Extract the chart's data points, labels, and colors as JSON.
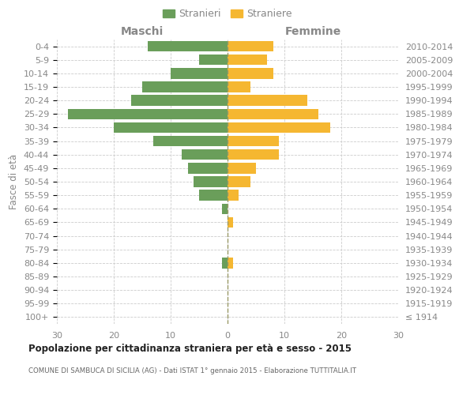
{
  "age_groups": [
    "100+",
    "95-99",
    "90-94",
    "85-89",
    "80-84",
    "75-79",
    "70-74",
    "65-69",
    "60-64",
    "55-59",
    "50-54",
    "45-49",
    "40-44",
    "35-39",
    "30-34",
    "25-29",
    "20-24",
    "15-19",
    "10-14",
    "5-9",
    "0-4"
  ],
  "birth_years": [
    "≤ 1914",
    "1915-1919",
    "1920-1924",
    "1925-1929",
    "1930-1934",
    "1935-1939",
    "1940-1944",
    "1945-1949",
    "1950-1954",
    "1955-1959",
    "1960-1964",
    "1965-1969",
    "1970-1974",
    "1975-1979",
    "1980-1984",
    "1985-1989",
    "1990-1994",
    "1995-1999",
    "2000-2004",
    "2005-2009",
    "2010-2014"
  ],
  "maschi": [
    0,
    0,
    0,
    0,
    1,
    0,
    0,
    0,
    1,
    5,
    6,
    7,
    8,
    13,
    20,
    28,
    17,
    15,
    10,
    5,
    14
  ],
  "femmine": [
    0,
    0,
    0,
    0,
    1,
    0,
    0,
    1,
    0,
    2,
    4,
    5,
    9,
    9,
    18,
    16,
    14,
    4,
    8,
    7,
    8
  ],
  "color_maschi": "#6a9e5a",
  "color_femmine": "#f5b731",
  "title": "Popolazione per cittadinanza straniera per età e sesso - 2015",
  "subtitle": "COMUNE DI SAMBUCA DI SICILIA (AG) - Dati ISTAT 1° gennaio 2015 - Elaborazione TUTTITALIA.IT",
  "xlabel_maschi": "Maschi",
  "xlabel_femmine": "Femmine",
  "ylabel_left": "Fasce di età",
  "xlim": 30,
  "legend_stranieri": "Stranieri",
  "legend_straniere": "Straniere",
  "background_color": "#ffffff",
  "grid_color": "#cccccc",
  "text_color": "#888888",
  "dashed_line_color": "#999966",
  "title_color": "#222222",
  "subtitle_color": "#666666"
}
